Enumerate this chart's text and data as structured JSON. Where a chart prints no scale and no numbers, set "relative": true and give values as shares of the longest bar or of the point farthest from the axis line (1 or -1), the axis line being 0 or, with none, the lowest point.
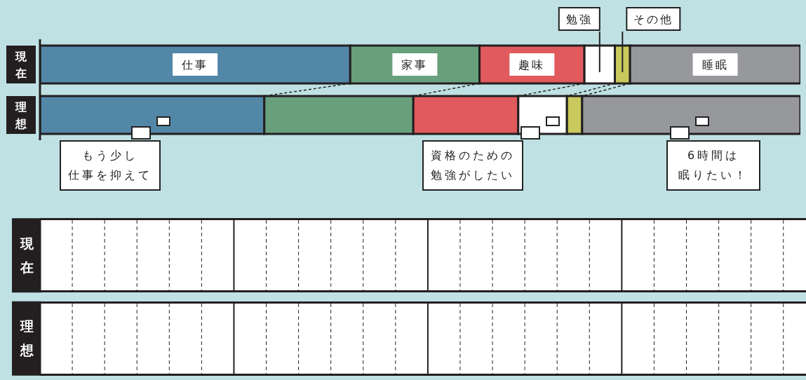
{
  "chart_data": [
    {
      "type": "bar",
      "orientation": "horizontal",
      "stacked": true,
      "relative": true,
      "tick_labels": "y",
      "categories": [
        "現在",
        "理想"
      ],
      "series": [
        {
          "name": "仕事",
          "color": "#5387a8",
          "values": [
            0.408,
            0.295
          ]
        },
        {
          "name": "家事",
          "color": "#68a07e",
          "values": [
            0.17,
            0.196
          ]
        },
        {
          "name": "趣味",
          "color": "#e05a5e",
          "values": [
            0.138,
            0.138
          ]
        },
        {
          "name": "勉強",
          "color": "#ffffff",
          "values": [
            0.04,
            0.064
          ]
        },
        {
          "name": "その他",
          "color": "#c9c95d",
          "values": [
            0.02,
            0.02
          ]
        },
        {
          "name": "睡眠",
          "color": "#97989c",
          "values": [
            0.224,
            0.287
          ]
        }
      ],
      "annotations": [
        "もう少し仕事を抑えて",
        "資格のための勉強がしたい",
        "6時間は眠りたい！"
      ]
    },
    {
      "type": "other",
      "categories": [
        "現在",
        "理想"
      ]
    }
  ]
}
